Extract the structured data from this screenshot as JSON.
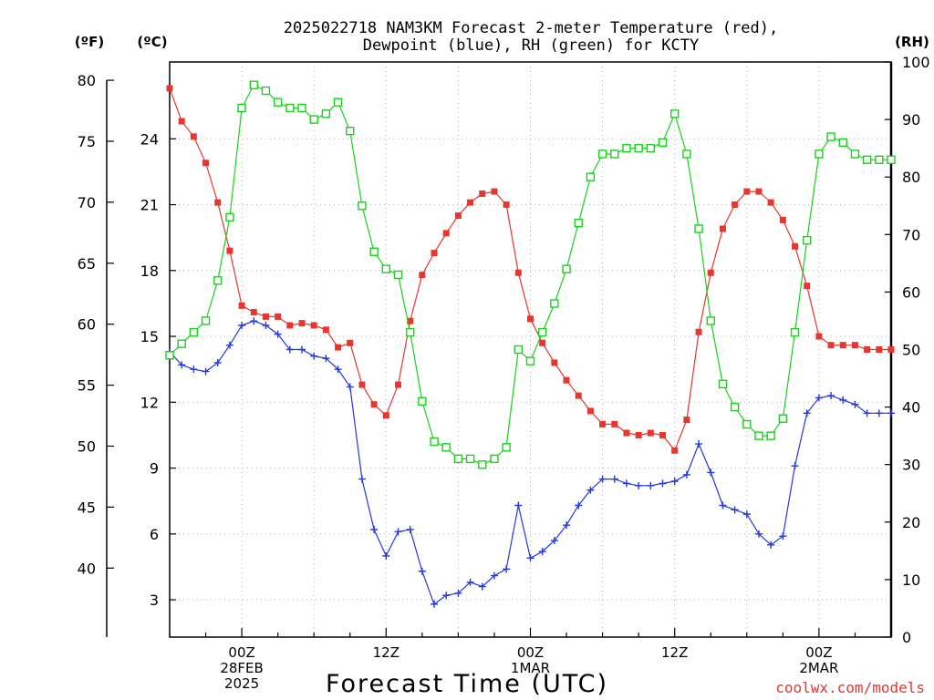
{
  "chart_data": {
    "type": "line",
    "title_lines": [
      "2025022718 NAM3KM Forecast 2-meter Temperature (red),",
      "Dewpoint (blue), RH (green) for KCTY"
    ],
    "left_outer_unit": "(ºF)",
    "left_inner_unit": "(ºC)",
    "right_unit": "(RH)",
    "xlabel": "Forecast Time (UTC)",
    "credit": "coolwx.com/models",
    "x_range_hours": [
      -6,
      54
    ],
    "x_ticks": [
      {
        "hour": 0,
        "lines": [
          "00Z",
          "28FEB",
          "2025"
        ]
      },
      {
        "hour": 12,
        "lines": [
          "12Z"
        ]
      },
      {
        "hour": 24,
        "lines": [
          "00Z",
          "1MAR"
        ]
      },
      {
        "hour": 36,
        "lines": [
          "12Z"
        ]
      },
      {
        "hour": 48,
        "lines": [
          "00Z",
          "2MAR"
        ]
      }
    ],
    "y_celsius_range": [
      1.3,
      27.5
    ],
    "y_celsius_ticks": [
      3,
      6,
      9,
      12,
      15,
      18,
      21,
      24
    ],
    "y_fahrenheit_ticks": [
      40,
      45,
      50,
      55,
      60,
      65,
      70,
      75,
      80
    ],
    "y_rh_range": [
      0,
      100
    ],
    "y_rh_ticks": [
      0,
      10,
      20,
      30,
      40,
      50,
      60,
      70,
      80,
      90,
      100
    ],
    "grid": true,
    "colors": {
      "temperature": "#e8362f",
      "dewpoint": "#2238e0",
      "rh": "#19d21c"
    },
    "series": [
      {
        "key": "temperature",
        "unit": "C",
        "marker": "filled-square",
        "x": [
          -6,
          -5,
          -4,
          -3,
          -2,
          -1,
          0,
          1,
          2,
          3,
          4,
          5,
          6,
          7,
          8,
          9,
          10,
          11,
          12,
          13,
          14,
          15,
          16,
          17,
          18,
          19,
          20,
          21,
          22,
          23,
          24,
          25,
          26,
          27,
          28,
          29,
          30,
          31,
          32,
          33,
          34,
          35,
          36,
          37,
          38,
          39,
          40,
          41,
          42,
          43,
          44,
          45,
          46,
          47,
          48,
          49,
          50,
          51,
          52,
          53,
          54
        ],
        "values": [
          26.3,
          24.8,
          24.1,
          22.9,
          21.1,
          18.9,
          16.4,
          16.1,
          15.9,
          15.9,
          15.5,
          15.6,
          15.5,
          15.3,
          14.5,
          14.7,
          12.8,
          11.9,
          11.4,
          12.8,
          15.7,
          17.8,
          18.8,
          19.7,
          20.5,
          21.1,
          21.5,
          21.6,
          21.0,
          17.9,
          15.8,
          14.7,
          13.8,
          13.0,
          12.3,
          11.6,
          11.0,
          11.0,
          10.6,
          10.5,
          10.6,
          10.5,
          9.8,
          11.2,
          15.2,
          17.9,
          19.9,
          21.0,
          21.6,
          21.6,
          21.1,
          20.3,
          19.1,
          17.3,
          15.0,
          14.6,
          14.6,
          14.6,
          14.4,
          14.4,
          14.4
        ]
      },
      {
        "key": "dewpoint",
        "unit": "C",
        "marker": "plus",
        "x": [
          -6,
          -5,
          -4,
          -3,
          -2,
          -1,
          0,
          1,
          2,
          3,
          4,
          5,
          6,
          7,
          8,
          9,
          10,
          11,
          12,
          13,
          14,
          15,
          16,
          17,
          18,
          19,
          20,
          21,
          22,
          23,
          24,
          25,
          26,
          27,
          28,
          29,
          30,
          31,
          32,
          33,
          34,
          35,
          36,
          37,
          38,
          39,
          40,
          41,
          42,
          43,
          44,
          45,
          46,
          47,
          48,
          49,
          50,
          51,
          52,
          53,
          54
        ],
        "values": [
          14.3,
          13.7,
          13.5,
          13.4,
          13.8,
          14.6,
          15.5,
          15.7,
          15.5,
          15.1,
          14.4,
          14.4,
          14.1,
          14.0,
          13.5,
          12.7,
          8.5,
          6.2,
          5.0,
          6.1,
          6.2,
          4.3,
          2.8,
          3.2,
          3.3,
          3.8,
          3.6,
          4.1,
          4.4,
          7.3,
          4.9,
          5.2,
          5.7,
          6.4,
          7.3,
          8.0,
          8.5,
          8.5,
          8.3,
          8.2,
          8.2,
          8.3,
          8.4,
          8.7,
          10.1,
          8.8,
          7.3,
          7.1,
          6.9,
          6.0,
          5.5,
          5.9,
          9.1,
          11.5,
          12.2,
          12.3,
          12.1,
          11.9,
          11.5,
          11.5,
          11.5
        ]
      },
      {
        "key": "rh",
        "unit": "%",
        "marker": "open-square",
        "x": [
          -6,
          -5,
          -4,
          -3,
          -2,
          -1,
          0,
          1,
          2,
          3,
          4,
          5,
          6,
          7,
          8,
          9,
          10,
          11,
          12,
          13,
          14,
          15,
          16,
          17,
          18,
          19,
          20,
          21,
          22,
          23,
          24,
          25,
          26,
          27,
          28,
          29,
          30,
          31,
          32,
          33,
          34,
          35,
          36,
          37,
          38,
          39,
          40,
          41,
          42,
          43,
          44,
          45,
          46,
          47,
          48,
          49,
          50,
          51,
          52,
          53,
          54
        ],
        "values": [
          49,
          51,
          53,
          55,
          62,
          73,
          92,
          96,
          95,
          93,
          92,
          92,
          90,
          91,
          93,
          88,
          75,
          67,
          64,
          63,
          53,
          41,
          34,
          33,
          31,
          31,
          30,
          31,
          33,
          50,
          48,
          53,
          58,
          64,
          72,
          80,
          84,
          84,
          85,
          85,
          85,
          86,
          91,
          84,
          71,
          55,
          44,
          40,
          37,
          35,
          35,
          38,
          53,
          69,
          84,
          87,
          86,
          84,
          83,
          83,
          83
        ]
      }
    ]
  }
}
